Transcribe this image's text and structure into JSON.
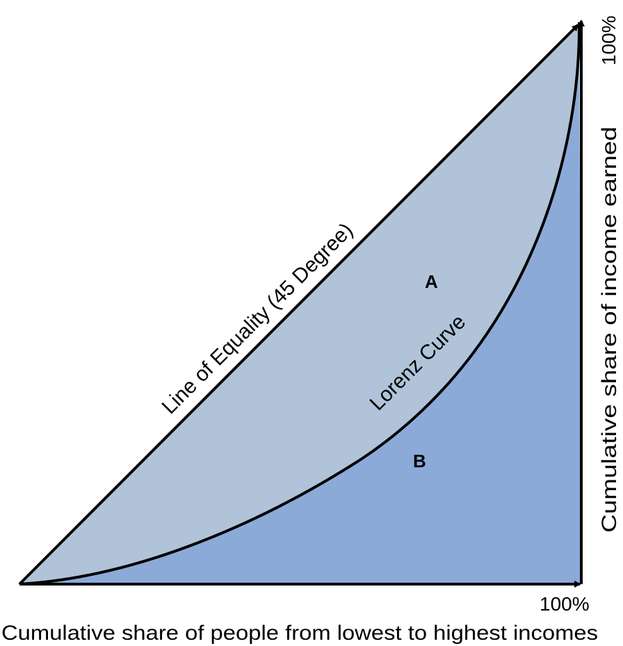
{
  "diagram": {
    "colors": {
      "region_a": "#b1c3d8",
      "region_b": "#8caad8",
      "lines": "#000000"
    },
    "labels": {
      "line_of_equality": "Line of Equality (45 Degree)",
      "lorenz_curve": "Lorenz Curve",
      "region_a": "A",
      "region_b": "B",
      "x_axis_max": "100%",
      "y_axis_max": "100%",
      "x_axis_title": "Cumulative share of people from lowest to highest incomes",
      "y_axis_title": "Cumulative share of income earned"
    }
  }
}
